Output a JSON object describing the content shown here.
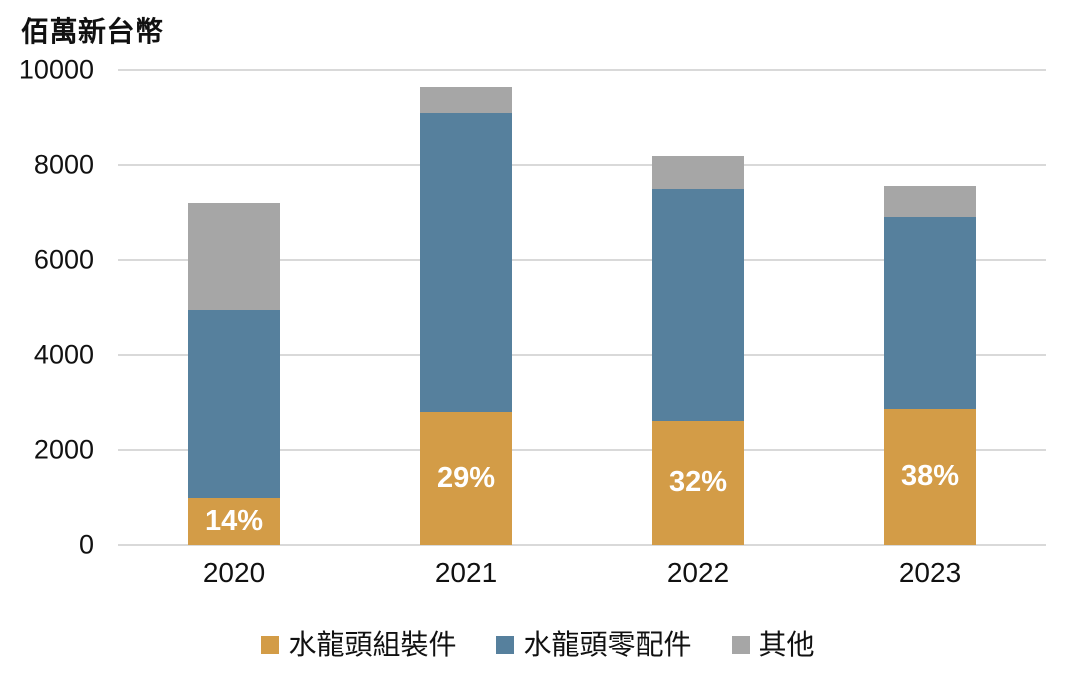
{
  "page": {
    "background": "#FFFFFF",
    "axis_text_color": "#111111"
  },
  "chart_data": {
    "type": "bar",
    "stacked": true,
    "title": "佰萬新台幣",
    "ylabel": "佰萬新台幣",
    "xlabel": "",
    "categories": [
      "2020",
      "2021",
      "2022",
      "2023"
    ],
    "series": [
      {
        "key": "faucet-assemblies",
        "name": "水龍頭組裝件",
        "color": "#D39C47",
        "values": [
          1000,
          2800,
          2620,
          2870
        ]
      },
      {
        "key": "faucet-parts",
        "name": "水龍頭零配件",
        "color": "#56809D",
        "values": [
          3950,
          6300,
          4880,
          4030
        ]
      },
      {
        "key": "others",
        "name": "其他",
        "color": "#A6A6A6",
        "values": [
          2250,
          550,
          700,
          650
        ]
      }
    ],
    "bar_labels": [
      "14%",
      "29%",
      "32%",
      "38%"
    ],
    "bar_label_series_key": "faucet-assemblies",
    "bar_label_color": "#FFFFFF",
    "ylim": [
      0,
      10000
    ],
    "yticks": [
      0,
      2000,
      4000,
      6000,
      8000,
      10000
    ],
    "grid": true,
    "gridline_color": "#D9D9D9",
    "legend_position": "bottom"
  }
}
